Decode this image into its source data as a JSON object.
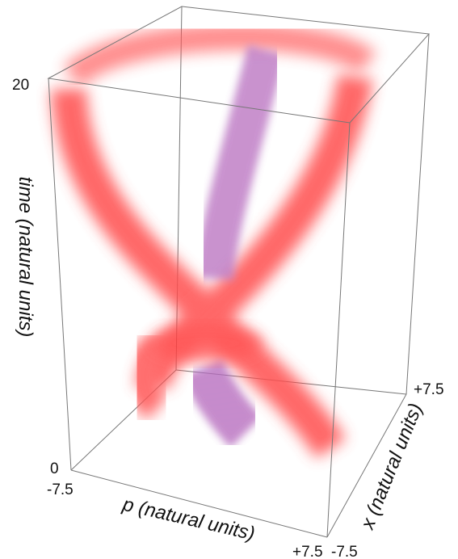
{
  "axes": {
    "time": {
      "label": "time (natural units)",
      "ticks": [
        "0",
        "20"
      ]
    },
    "p": {
      "label": "p (natural units)",
      "ticks": [
        "-7.5",
        "+7.5"
      ]
    },
    "x": {
      "label": "x (natural units)",
      "ticks": [
        "-7.5",
        "+7.5"
      ]
    }
  }
}
